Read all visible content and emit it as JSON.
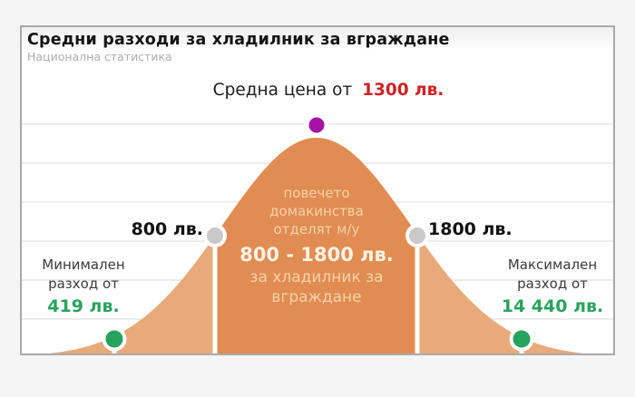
{
  "header": {
    "title": "Средни разходи за хладилник за вграждане",
    "subtitle": "Национална статистика"
  },
  "average": {
    "label": "Средна цена от",
    "value": "1300 лв."
  },
  "range_markers": {
    "low": "800 лв.",
    "high": "1800 лв."
  },
  "min_block": {
    "lines": [
      "Минимален",
      "разход от"
    ],
    "value": "419 лв."
  },
  "max_block": {
    "lines": [
      "Максимален",
      "разход от"
    ],
    "value": "14 440 лв."
  },
  "bell_text": {
    "lines": [
      "повечето",
      "домакинства",
      "отделят м/у"
    ],
    "value": "800 - 1800 лв.",
    "tail_lines": [
      "за хладилник за",
      "вграждане"
    ]
  },
  "colors": {
    "bell_center": "#e08c52",
    "bell_tails": "#e8aa7a",
    "average_value_red": "#cc2127",
    "min_max_value_green": "#2aa25e",
    "marker_purple": "#a811a8",
    "marker_gray": "#c9c9c9",
    "marker_green": "#26a35c",
    "grid": "#ececec"
  },
  "chart_data": {
    "type": "area",
    "title": "Средни разходи за хладилник за вграждане",
    "subtitle": "Национална статистика",
    "description": "Bell-curve (normal distribution) infographic of household spending on a built-in refrigerator; center band between 800 and 1800 лв. highlighted darker, tails lighter",
    "currency": "лв.",
    "min_cost": 419,
    "average_cost": 1300,
    "max_cost": 14440,
    "typical_range": [
      800,
      1800
    ],
    "annotation": "повечето домакинства отделят м/у 800 - 1800 лв. за хладилник за вграждане",
    "markers": [
      {
        "value": 419,
        "label": "Минимален разход от 419 лв.",
        "marker_color": "green",
        "position": "left-tail"
      },
      {
        "value": 800,
        "label": "800 лв.",
        "marker_color": "gray",
        "position": "left-band-edge"
      },
      {
        "value": 1300,
        "label": "Средна цена от 1300 лв.",
        "marker_color": "purple",
        "position": "peak"
      },
      {
        "value": 1800,
        "label": "1800 лв.",
        "marker_color": "gray",
        "position": "right-band-edge"
      },
      {
        "value": 14440,
        "label": "Максимален разход от 14 440 лв.",
        "marker_color": "green",
        "position": "right-tail"
      }
    ],
    "grid": true,
    "legend": false,
    "xlabel": "",
    "ylabel": ""
  }
}
